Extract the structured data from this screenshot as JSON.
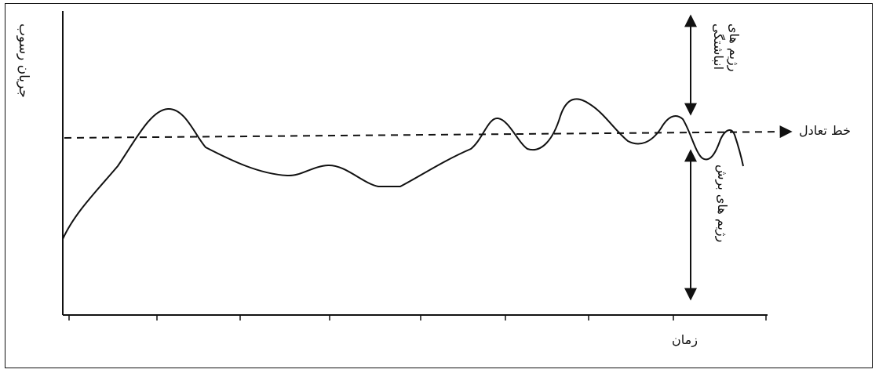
{
  "figure": {
    "y_axis_label": "جریان رسوب",
    "x_axis_label": "زمان",
    "equilibrium_label": "خط تعادل",
    "upper_regime_lines": [
      "رژیم های",
      "انباشتگی"
    ],
    "lower_regime_label": "رژیم های برش"
  }
}
